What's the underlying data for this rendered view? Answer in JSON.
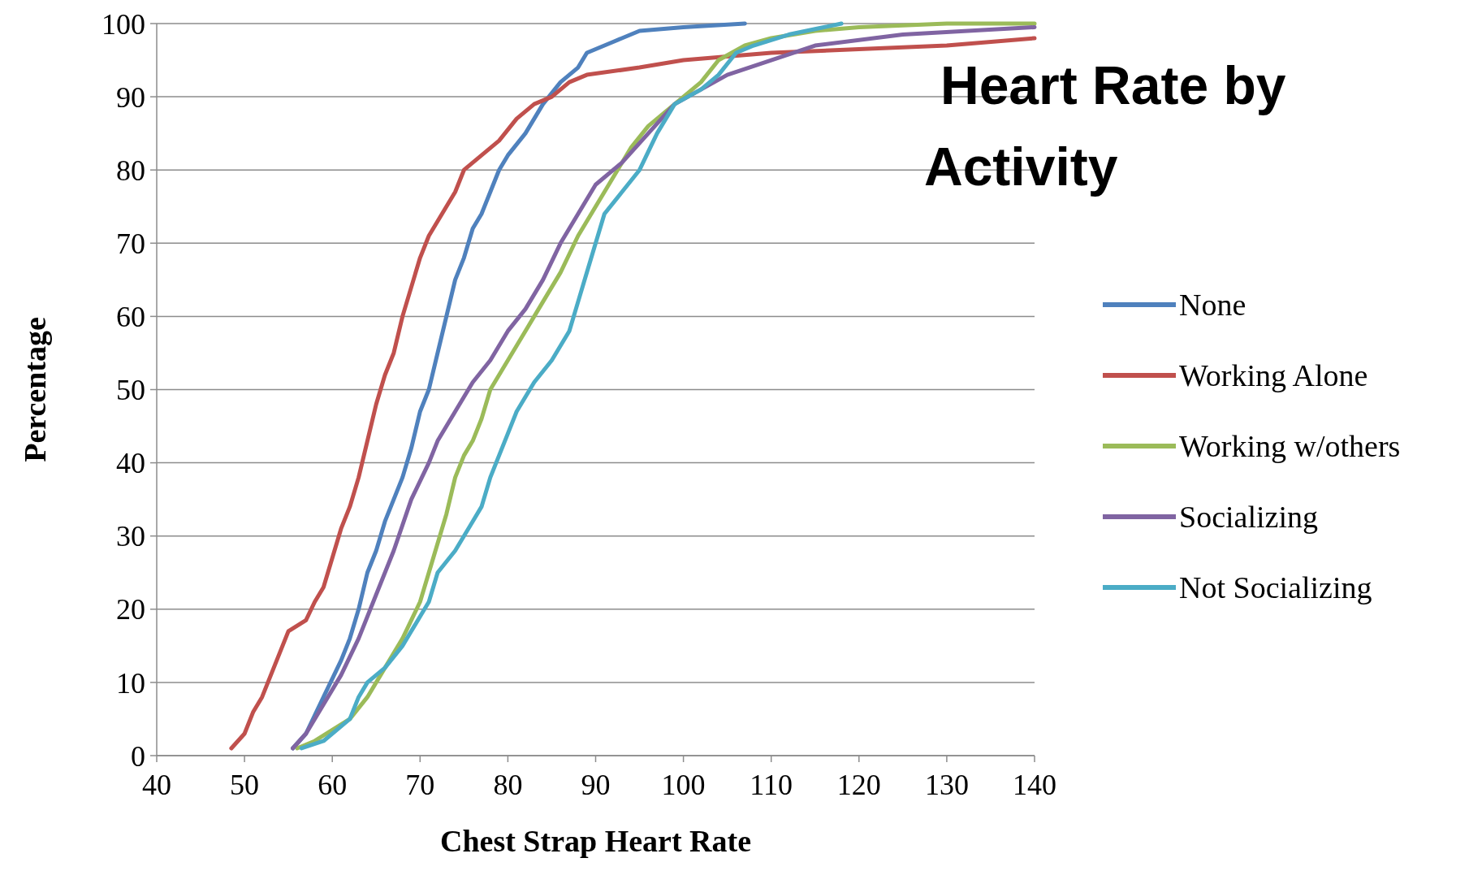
{
  "chart_data": {
    "type": "line",
    "title": "Heart Rate by Activity",
    "xlabel": "Chest Strap Heart Rate",
    "ylabel": "Percentage",
    "xlim": [
      40,
      140
    ],
    "xticks": [
      40,
      50,
      60,
      70,
      80,
      90,
      100,
      110,
      120,
      130,
      140
    ],
    "ylim": [
      0,
      100
    ],
    "yticks": [
      0,
      10,
      20,
      30,
      40,
      50,
      60,
      70,
      80,
      90,
      100
    ],
    "grid": "y",
    "legend": "right",
    "marker": "none",
    "line_style": "solid",
    "series": [
      {
        "name": "None",
        "color": "#4f81bd",
        "x": [
          55.5,
          57,
          59,
          61,
          62,
          63,
          64,
          65,
          66,
          67,
          68,
          69,
          70,
          71,
          72,
          73,
          74,
          75,
          76,
          77,
          78,
          79,
          80,
          82,
          84,
          86,
          88,
          89,
          92,
          95,
          100,
          107
        ],
        "values": [
          1,
          3,
          8,
          13,
          16,
          20,
          25,
          28,
          32,
          35,
          38,
          42,
          47,
          50,
          55,
          60,
          65,
          68,
          72,
          74,
          77,
          80,
          82,
          85,
          89,
          92,
          94,
          96,
          97.5,
          99,
          99.5,
          100
        ]
      },
      {
        "name": "Working Alone",
        "color": "#c0504d",
        "x": [
          48.5,
          50,
          51,
          52,
          53,
          54,
          55,
          57,
          58,
          59,
          60,
          61,
          62,
          63,
          64,
          65,
          66,
          67,
          68,
          69,
          70,
          71,
          72,
          73,
          74,
          75,
          77,
          79,
          81,
          83,
          85,
          87,
          89,
          95,
          100,
          110,
          120,
          130,
          140
        ],
        "values": [
          1,
          3,
          6,
          8,
          11,
          14,
          17,
          18.5,
          21,
          23,
          27,
          31,
          34,
          38,
          43,
          48,
          52,
          55,
          60,
          64,
          68,
          71,
          73,
          75,
          77,
          80,
          82,
          84,
          87,
          89,
          90,
          92,
          93,
          94,
          95,
          96,
          96.5,
          97,
          98
        ]
      },
      {
        "name": "Working w/others",
        "color": "#9bbb59",
        "x": [
          56,
          58,
          60,
          62,
          64,
          66,
          68,
          70,
          71,
          72,
          73,
          74,
          75,
          76,
          77,
          78,
          79,
          80,
          82,
          84,
          86,
          88,
          90,
          92,
          94,
          96,
          98,
          100,
          102,
          104,
          107,
          110,
          115,
          120,
          130,
          140
        ],
        "values": [
          1,
          2,
          3.5,
          5,
          8,
          12,
          16,
          21,
          25,
          29,
          33,
          38,
          41,
          43,
          46,
          50,
          52,
          54,
          58,
          62,
          66,
          71,
          75,
          79,
          83,
          86,
          88,
          90,
          92,
          95,
          97,
          98,
          99,
          99.5,
          100,
          100
        ]
      },
      {
        "name": "Socializing",
        "color": "#8064a2",
        "x": [
          55.5,
          57,
          59,
          61,
          63,
          65,
          67,
          69,
          71,
          72,
          74,
          76,
          78,
          80,
          82,
          84,
          86,
          88,
          90,
          93,
          96,
          99,
          102,
          105,
          110,
          115,
          125,
          140
        ],
        "values": [
          1,
          3,
          7,
          11,
          16,
          22,
          28,
          35,
          40,
          43,
          47,
          51,
          54,
          58,
          61,
          65,
          70,
          74,
          78,
          81,
          85,
          89,
          91,
          93,
          95,
          97,
          98.5,
          99.5
        ]
      },
      {
        "name": "Not Socializing",
        "color": "#4bacc6",
        "x": [
          56.5,
          59,
          62,
          63,
          64,
          66,
          68,
          70,
          71,
          72,
          74,
          75,
          76,
          77,
          78,
          79,
          80,
          81,
          83,
          85,
          87,
          88,
          89,
          90,
          91,
          93,
          95,
          97,
          99,
          102,
          104,
          106,
          108,
          112,
          116,
          118
        ],
        "values": [
          1,
          2,
          5,
          8,
          10,
          12,
          15,
          19,
          21,
          25,
          28,
          30,
          32,
          34,
          38,
          41,
          44,
          47,
          51,
          54,
          58,
          62,
          66,
          70,
          74,
          77,
          80,
          85,
          89,
          91,
          93,
          96,
          97,
          98.5,
          99.5,
          100
        ]
      }
    ]
  }
}
